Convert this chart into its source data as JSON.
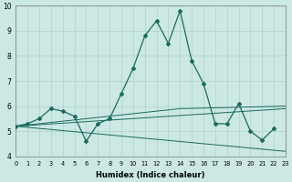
{
  "xlabel": "Humidex (Indice chaleur)",
  "background_color": "#cce8e4",
  "grid_color": "#b0d0cc",
  "line_color": "#1a6b5a",
  "xlim": [
    0,
    23
  ],
  "ylim": [
    4,
    10
  ],
  "yticks": [
    4,
    5,
    6,
    7,
    8,
    9,
    10
  ],
  "xticks": [
    0,
    1,
    2,
    3,
    4,
    5,
    6,
    7,
    8,
    9,
    10,
    11,
    12,
    13,
    14,
    15,
    16,
    17,
    18,
    19,
    20,
    21,
    22,
    23
  ],
  "line_main": {
    "x": [
      0,
      1,
      2,
      3,
      4,
      5,
      6,
      7,
      8,
      9,
      10,
      11,
      12,
      13,
      14,
      15,
      16,
      17,
      18,
      19,
      20,
      21,
      22,
      23
    ],
    "y": [
      5.2,
      5.3,
      5.5,
      5.9,
      5.8,
      5.6,
      4.6,
      5.3,
      5.5,
      6.5,
      7.5,
      8.8,
      9.4,
      8.5,
      9.8,
      7.8,
      6.9,
      5.3,
      5.3,
      6.1,
      5.0,
      4.65,
      5.1,
      null
    ]
  },
  "line_flat1": {
    "x": [
      0,
      23
    ],
    "y": [
      5.2,
      5.9
    ]
  },
  "line_flat2": {
    "x": [
      0,
      23
    ],
    "y": [
      5.2,
      4.2
    ]
  },
  "line_flat3": {
    "x": [
      0,
      14,
      23
    ],
    "y": [
      5.2,
      5.9,
      6.0
    ]
  }
}
